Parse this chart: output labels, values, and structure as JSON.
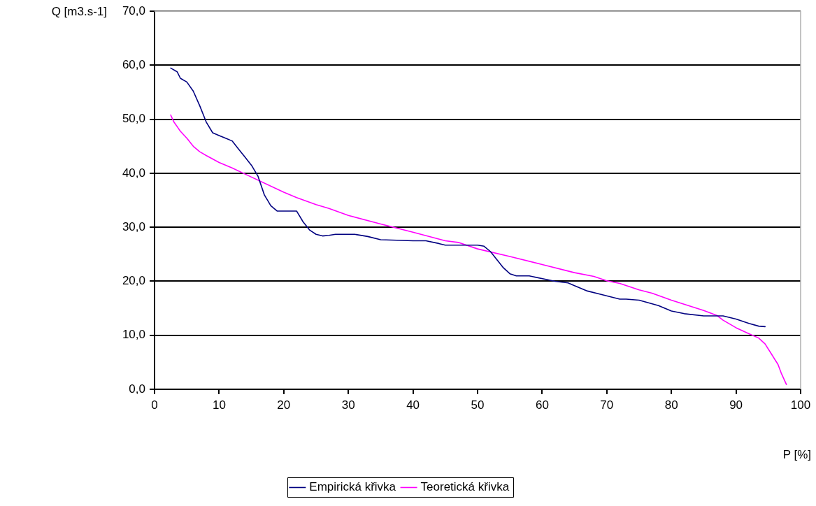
{
  "chart_data": {
    "type": "line",
    "xlabel": "P [%]",
    "ylabel": "Q [m3.s-1]",
    "xlim": [
      0,
      100
    ],
    "xticks": [
      0,
      10,
      20,
      30,
      40,
      50,
      60,
      70,
      80,
      90,
      100
    ],
    "ylim": [
      0,
      70
    ],
    "yticks": [
      {
        "value": 0,
        "label": "0,0"
      },
      {
        "value": 10,
        "label": "10,0"
      },
      {
        "value": 20,
        "label": "20,0"
      },
      {
        "value": 30,
        "label": "30,0"
      },
      {
        "value": 40,
        "label": "40,0"
      },
      {
        "value": 50,
        "label": "50,0"
      },
      {
        "value": 60,
        "label": "60,0"
      },
      {
        "value": 70,
        "label": "70,0"
      }
    ],
    "grid": "y",
    "legend": "bottom",
    "marker": "none",
    "line_style": "solid",
    "series": [
      {
        "name": "Empirická křivka",
        "color": "#000080",
        "x": [
          2.5,
          3.5,
          4,
          5,
          6,
          7,
          8,
          9,
          10,
          11,
          12,
          13,
          14,
          15,
          16,
          17,
          18,
          19,
          21,
          22,
          23,
          24,
          25,
          26,
          27,
          28,
          31,
          33,
          35,
          40,
          42,
          44,
          45,
          50,
          51,
          52,
          54,
          55,
          56,
          58,
          62,
          64,
          65,
          67,
          69,
          72,
          73,
          75,
          78,
          80,
          82,
          85,
          88,
          90,
          92,
          93.5,
          94.5
        ],
        "values": [
          59.5,
          58.8,
          57.6,
          56.9,
          55.2,
          52.5,
          49.5,
          47.5,
          47,
          46.5,
          46,
          44.5,
          43,
          41.5,
          39.5,
          36,
          34,
          33,
          33,
          33,
          31,
          29.5,
          28.7,
          28.4,
          28.5,
          28.7,
          28.7,
          28.3,
          27.7,
          27.5,
          27.5,
          27,
          26.7,
          26.7,
          26.5,
          25.5,
          22.5,
          21.4,
          21,
          21,
          20,
          19.7,
          19.2,
          18.2,
          17.6,
          16.7,
          16.7,
          16.5,
          15.5,
          14.5,
          14,
          13.6,
          13.6,
          13,
          12.2,
          11.7,
          11.6
        ]
      },
      {
        "name": "Teoretická křivka",
        "color": "#ff00ff",
        "x": [
          2.5,
          3,
          4,
          5,
          6,
          7,
          8,
          10,
          12,
          15,
          20,
          22,
          25,
          27,
          30,
          35,
          40,
          45,
          47,
          50,
          55,
          60,
          65,
          68,
          70,
          72,
          75,
          77,
          80,
          85,
          87,
          88,
          90,
          92,
          93.5,
          94.5,
          95.5,
          96.5,
          97,
          97.8
        ],
        "values": [
          50.8,
          49.5,
          47.8,
          46.5,
          45,
          44,
          43.3,
          42,
          41,
          39.3,
          36.5,
          35.5,
          34.2,
          33.5,
          32.2,
          30.6,
          29.1,
          27.5,
          27.2,
          26,
          24.6,
          23.1,
          21.6,
          20.9,
          20.1,
          19.6,
          18.4,
          17.8,
          16.5,
          14.6,
          13.7,
          12.8,
          11.4,
          10.3,
          9.5,
          8.4,
          6.5,
          4.6,
          3,
          0.9
        ]
      }
    ]
  }
}
